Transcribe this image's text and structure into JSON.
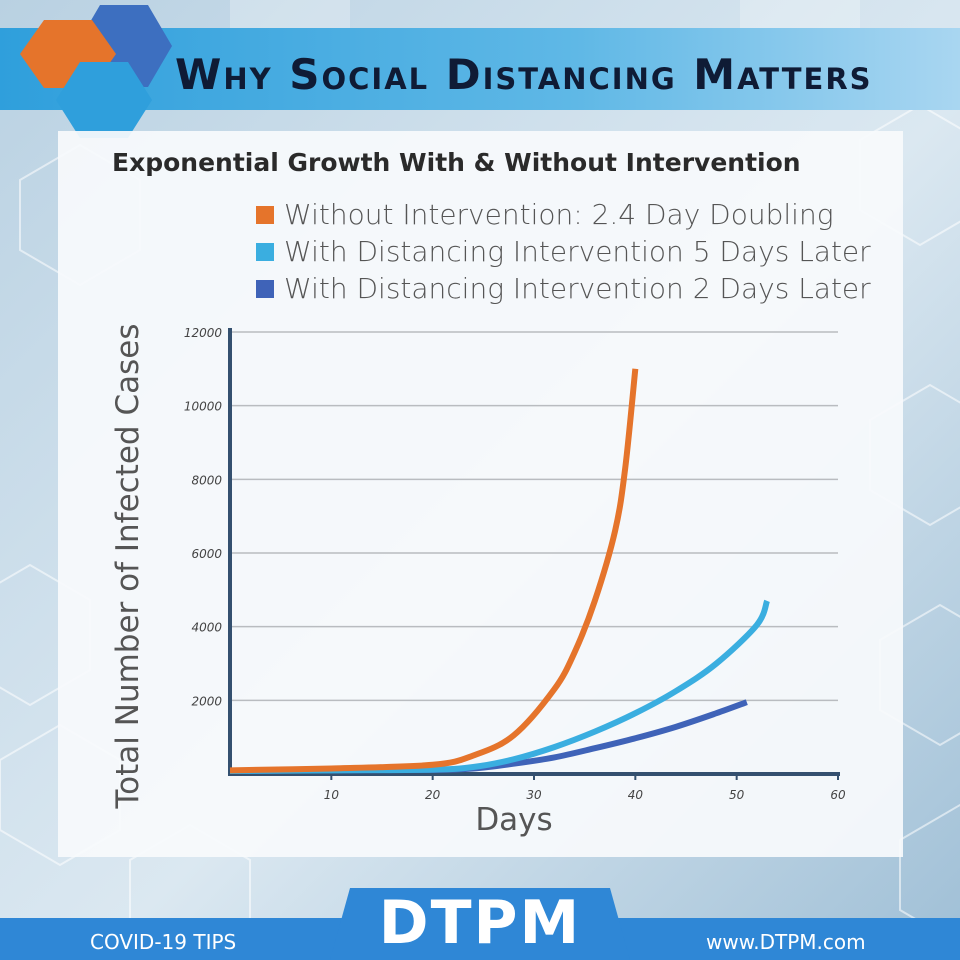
{
  "header": {
    "title": "Why Social Distancing Matters"
  },
  "chart_data": {
    "type": "line",
    "title": "Exponential Growth With & Without Intervention",
    "xlabel": "Days",
    "ylabel": "Total Number of Infected Cases",
    "xlim": [
      0,
      60
    ],
    "ylim": [
      0,
      12000
    ],
    "xticks": [
      10,
      20,
      30,
      40,
      50,
      60
    ],
    "yticks": [
      2000,
      4000,
      6000,
      8000,
      10000,
      12000
    ],
    "grid": true,
    "legend_position": "top",
    "series": [
      {
        "name": "Without Intervention: 2.4 Day Doubling",
        "color": "#e5742b",
        "x": [
          0,
          10,
          20,
          24,
          28,
          32,
          34,
          36,
          38,
          39,
          40
        ],
        "y": [
          100,
          150,
          250,
          500,
          1050,
          2300,
          3300,
          4700,
          6600,
          8300,
          11000
        ]
      },
      {
        "name": "With Distancing Intervention 5 Days Later",
        "color": "#3aaee0",
        "x": [
          0,
          10,
          20,
          24,
          28,
          32,
          36,
          40,
          44,
          48,
          52,
          53
        ],
        "y": [
          80,
          100,
          120,
          190,
          400,
          730,
          1150,
          1650,
          2250,
          3000,
          4050,
          4700
        ]
      },
      {
        "name": "With Distancing Intervention 2 Days Later",
        "color": "#3f63b8",
        "x": [
          0,
          10,
          20,
          24,
          28,
          32,
          36,
          40,
          44,
          48,
          51
        ],
        "y": [
          80,
          100,
          110,
          150,
          280,
          450,
          700,
          970,
          1280,
          1650,
          1950
        ]
      }
    ]
  },
  "footer": {
    "left_text": "COVID-19 TIPS",
    "brand": "DTPM",
    "right_text": "www.DTPM.com"
  }
}
